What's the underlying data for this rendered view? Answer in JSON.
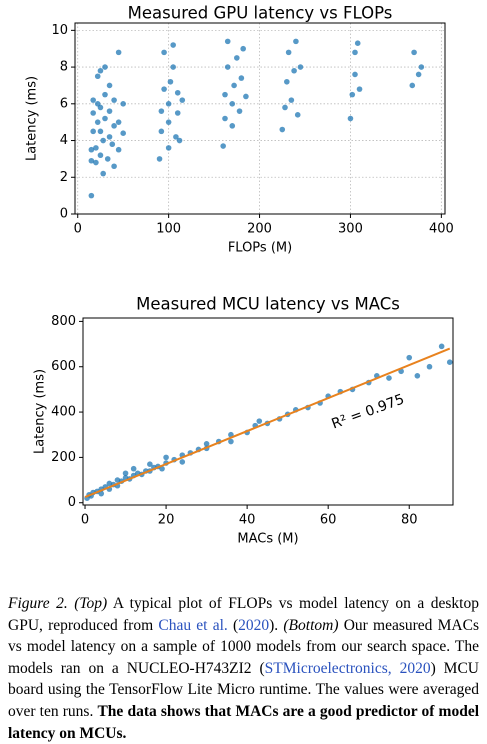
{
  "chart_data": [
    {
      "type": "scatter",
      "title": "Measured GPU latency vs FLOPs",
      "xlabel": "FLOPs (M)",
      "ylabel": "Latency (ms)",
      "color": "#1f77b4",
      "grid": true,
      "xlim": [
        -3,
        404
      ],
      "ylim": [
        0,
        10.4
      ],
      "xticks": [
        0,
        100,
        200,
        300,
        400
      ],
      "yticks": [
        0,
        2,
        4,
        6,
        8,
        10
      ],
      "x": [
        15,
        15,
        15,
        17,
        17,
        17,
        20,
        20,
        22,
        22,
        22,
        25,
        25,
        25,
        25,
        28,
        28,
        30,
        30,
        30,
        33,
        35,
        35,
        35,
        38,
        40,
        40,
        40,
        45,
        45,
        45,
        50,
        50,
        90,
        92,
        92,
        95,
        95,
        100,
        100,
        100,
        102,
        105,
        105,
        108,
        110,
        110,
        112,
        115,
        160,
        162,
        162,
        165,
        165,
        170,
        170,
        172,
        175,
        178,
        180,
        182,
        185,
        225,
        228,
        230,
        232,
        235,
        238,
        240,
        242,
        245,
        300,
        302,
        305,
        305,
        308,
        310,
        368,
        370,
        375,
        378
      ],
      "y": [
        1.0,
        2.9,
        3.5,
        4.5,
        5.5,
        6.2,
        2.8,
        3.6,
        5.0,
        6.0,
        7.5,
        3.2,
        4.5,
        5.8,
        7.8,
        2.2,
        4.0,
        5.2,
        6.5,
        8.0,
        3.0,
        4.2,
        5.6,
        7.0,
        3.8,
        2.6,
        4.8,
        6.2,
        3.5,
        5.0,
        8.8,
        4.4,
        6.0,
        3.0,
        4.5,
        5.6,
        6.8,
        8.8,
        3.6,
        5.0,
        6.0,
        7.2,
        8.0,
        9.2,
        4.2,
        5.5,
        6.6,
        4.0,
        6.2,
        3.7,
        5.2,
        6.5,
        8.0,
        9.4,
        4.8,
        6.0,
        7.0,
        8.5,
        5.6,
        7.4,
        9.0,
        6.4,
        4.6,
        5.8,
        7.2,
        8.8,
        6.2,
        7.8,
        9.4,
        5.4,
        8.0,
        5.2,
        6.5,
        7.6,
        8.8,
        9.3,
        6.8,
        7.0,
        8.8,
        7.6,
        8.0
      ]
    },
    {
      "type": "scatter",
      "title": "Measured MCU latency vs MACs",
      "xlabel": "MACs (M)",
      "ylabel": "Latency (ms)",
      "color": "#1f77b4",
      "grid": false,
      "xlim": [
        -0.5,
        90.8
      ],
      "ylim": [
        -10,
        815
      ],
      "xticks": [
        0,
        20,
        40,
        60,
        80
      ],
      "yticks": [
        0,
        200,
        400,
        600,
        800
      ],
      "x": [
        0.5,
        1,
        1.5,
        2,
        3,
        4,
        4,
        5,
        6,
        6,
        7,
        8,
        8,
        9,
        10,
        10,
        11,
        12,
        12,
        13,
        14,
        15,
        16,
        16,
        17,
        18,
        19,
        20,
        20,
        22,
        24,
        24,
        26,
        28,
        30,
        30,
        33,
        36,
        36,
        40,
        42,
        43,
        45,
        48,
        50,
        52,
        55,
        58,
        60,
        63,
        66,
        70,
        72,
        75,
        78,
        80,
        82,
        85,
        88,
        90
      ],
      "y": [
        20,
        35,
        30,
        45,
        50,
        60,
        40,
        70,
        85,
        60,
        80,
        100,
        75,
        95,
        110,
        130,
        105,
        120,
        150,
        130,
        125,
        140,
        170,
        140,
        155,
        160,
        150,
        175,
        200,
        190,
        210,
        180,
        220,
        235,
        240,
        260,
        270,
        300,
        270,
        310,
        340,
        360,
        350,
        370,
        390,
        410,
        420,
        440,
        470,
        490,
        500,
        530,
        560,
        550,
        580,
        640,
        560,
        600,
        690,
        620
      ],
      "fit_line": {
        "x": [
          0,
          90
        ],
        "y": [
          25,
          680
        ],
        "color": "#e8821e"
      },
      "annotation": "R² = 0.975"
    }
  ],
  "caption": [
    {
      "text": "Figure 2.",
      "style": "italic"
    },
    {
      "text": " ",
      "style": "plain"
    },
    {
      "text": "(Top)",
      "style": "italic"
    },
    {
      "text": " A typical plot of FLOPs vs model latency on a desktop GPU, reproduced from ",
      "style": "plain"
    },
    {
      "text": "Chau et al.",
      "style": "link"
    },
    {
      "text": " (",
      "style": "plain"
    },
    {
      "text": "2020",
      "style": "link"
    },
    {
      "text": "). ",
      "style": "plain"
    },
    {
      "text": "(Bottom)",
      "style": "italic"
    },
    {
      "text": " Our measured MACs vs model latency on a sample of 1000 models from our search space. The models ran on a NUCLEO-H743ZI2 (",
      "style": "plain"
    },
    {
      "text": "STMicroelectronics, 2020",
      "style": "link"
    },
    {
      "text": ") MCU board using the TensorFlow Lite Micro runtime. The values were averaged over ten runs. ",
      "style": "plain"
    },
    {
      "text": "The data shows that MACs are a good predictor of model latency on MCUs.",
      "style": "bold"
    }
  ]
}
